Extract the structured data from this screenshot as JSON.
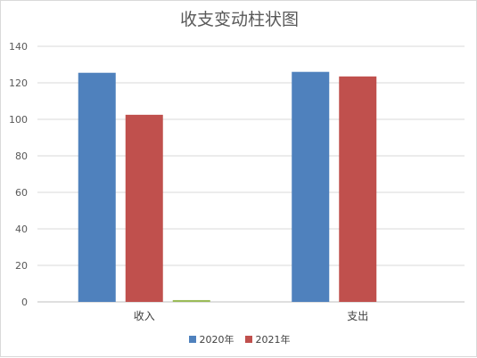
{
  "chart_data": {
    "type": "bar",
    "title": "收支变动柱状图",
    "categories": [
      "收入",
      "支出"
    ],
    "series": [
      {
        "name": "2020年",
        "color": "#4f81bd",
        "values": [
          125.5,
          126
        ]
      },
      {
        "name": "2021年",
        "color": "#c0504d",
        "values": [
          102.5,
          123.5
        ]
      },
      {
        "color": "#9bbb59",
        "values": [
          1,
          0
        ]
      }
    ],
    "ylim": [
      0,
      140
    ],
    "yticks": [
      0,
      20,
      40,
      60,
      80,
      100,
      120,
      140
    ],
    "grid": true,
    "legend": "bottom"
  }
}
